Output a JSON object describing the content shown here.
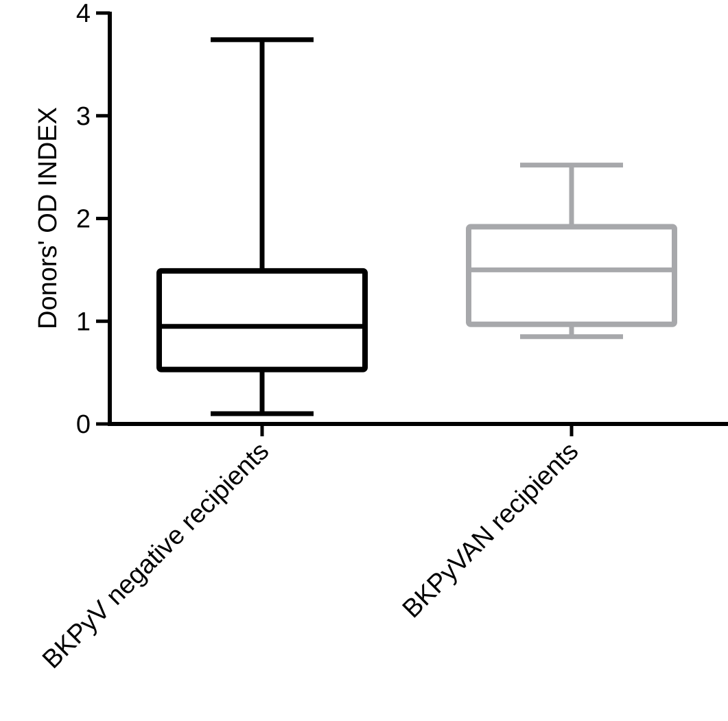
{
  "chart_data": {
    "type": "box",
    "title": "",
    "xlabel": "",
    "ylabel": "Donors' OD INDEX",
    "ylim": [
      0,
      4
    ],
    "yticks": [
      "0",
      "1",
      "2",
      "3",
      "4"
    ],
    "categories": [
      "BKPyV negative recipients",
      "BKPyVAN recipients"
    ],
    "series": [
      {
        "category": "BKPyV negative recipients",
        "min": 0.1,
        "q1": 0.53,
        "median": 0.95,
        "q3": 1.49,
        "max": 3.74,
        "color": "#000000"
      },
      {
        "category": "BKPyVAN recipients",
        "min": 0.85,
        "q1": 0.97,
        "median": 1.5,
        "q3": 1.92,
        "max": 2.52,
        "color": "#a7a8ab"
      }
    ],
    "grid": false,
    "legend": "none"
  }
}
